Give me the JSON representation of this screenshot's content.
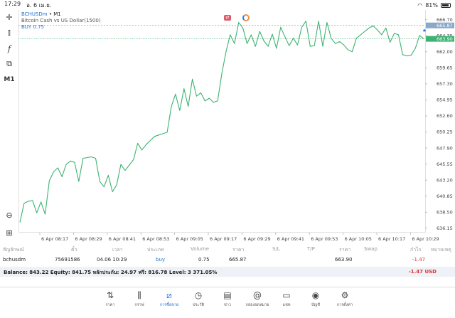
{
  "status_bar": {
    "time": "17:29",
    "date": "อ. 6 เม.ย.",
    "battery": "81%"
  },
  "chart": {
    "symbol": "BCHUSDm",
    "timeframe": "M1",
    "description": "Bitcoin Cash vs US Dollar(1500)",
    "buy_line": "BUY 0.75",
    "bid_tag": "663.90",
    "ask_tag": "665.87",
    "colors": {
      "line": "#3cb371",
      "bid": "#3cb371",
      "ask": "#8aa8c8",
      "accent": "#1e6fd0"
    }
  },
  "chart_data": {
    "type": "line",
    "x_ticks": [
      "6 Apr 08:17",
      "6 Apr 08:29",
      "6 Apr 08:41",
      "6 Apr 08:53",
      "6 Apr 09:05",
      "6 Apr 09:17",
      "6 Apr 09:29",
      "6 Apr 09:41",
      "6 Apr 09:53",
      "6 Apr 10:05",
      "6 Apr 10:17",
      "6 Apr 10:29"
    ],
    "y_ticks": [
      636.15,
      638.5,
      640.85,
      643.2,
      645.55,
      647.9,
      650.25,
      652.6,
      654.95,
      657.3,
      659.65,
      662.0,
      664.35,
      666.7
    ],
    "ylim": [
      635.5,
      667.3
    ],
    "values": [
      637.0,
      639.8,
      640.1,
      640.2,
      638.4,
      640.0,
      638.2,
      643.1,
      644.4,
      645.0,
      643.7,
      645.5,
      646.0,
      645.8,
      643.0,
      646.4,
      646.5,
      646.6,
      646.4,
      643.0,
      642.2,
      643.9,
      641.5,
      642.5,
      645.5,
      644.6,
      645.4,
      646.2,
      648.6,
      647.6,
      648.4,
      649.0,
      649.6,
      649.8,
      650.0,
      650.2,
      654.0,
      655.8,
      653.4,
      656.6,
      654.0,
      658.0,
      655.5,
      656.0,
      654.8,
      655.2,
      654.6,
      654.8,
      658.8,
      662.0,
      664.5,
      663.2,
      666.3,
      665.5,
      663.2,
      664.5,
      662.8,
      665.0,
      663.6,
      662.8,
      664.6,
      662.5,
      665.6,
      664.2,
      662.9,
      664.0,
      663.0,
      665.6,
      666.5,
      662.8,
      662.9,
      666.5,
      662.8,
      666.3,
      664.0,
      663.2,
      663.5,
      663.0,
      662.3,
      662.0,
      664.0,
      664.5,
      665.0,
      665.5,
      665.8,
      665.2,
      664.5,
      665.5,
      663.4,
      664.7,
      664.5,
      661.6,
      661.4,
      661.5,
      662.5,
      664.4,
      663.9
    ]
  },
  "trade": {
    "headers": {
      "symbol": "สัญลักษณ์",
      "ticket": "ตั๋ว",
      "time": "เวลา",
      "type": "ประเภท",
      "volume": "Volume",
      "price": "ราคา",
      "sl": "S/L",
      "tp": "T/P",
      "cur_price": "ราคา",
      "swap": "Swap",
      "profit": "กำไร",
      "comment": "หมายเหตุ"
    },
    "row": {
      "symbol": "bchusdm",
      "ticket": "75691586",
      "time": "04.06 10:29",
      "type": "buy",
      "volume": "0.75",
      "price": "665.87",
      "cur_price": "663.90",
      "profit": "-1.47"
    }
  },
  "balance": {
    "text": "Balance: 843.22 Equity: 841.75 หลักประกัน: 24.97 ฟรี: 816.78 Level: 3 371.05%",
    "pl": "-1.47 USD"
  },
  "nav": [
    {
      "label": "ราคา",
      "icon": "quotes-icon"
    },
    {
      "label": "กราฟ",
      "icon": "chart-icon"
    },
    {
      "label": "การซื้อขาย",
      "icon": "trade-icon"
    },
    {
      "label": "ประวัติ",
      "icon": "history-icon"
    },
    {
      "label": "ข่าว",
      "icon": "news-icon"
    },
    {
      "label": "กล่องจดหมาย",
      "icon": "mailbox-icon"
    },
    {
      "label": "แชท",
      "icon": "chat-icon"
    },
    {
      "label": "บัญชี",
      "icon": "account-icon"
    },
    {
      "label": "การตั้งค่า",
      "icon": "settings-icon"
    }
  ]
}
